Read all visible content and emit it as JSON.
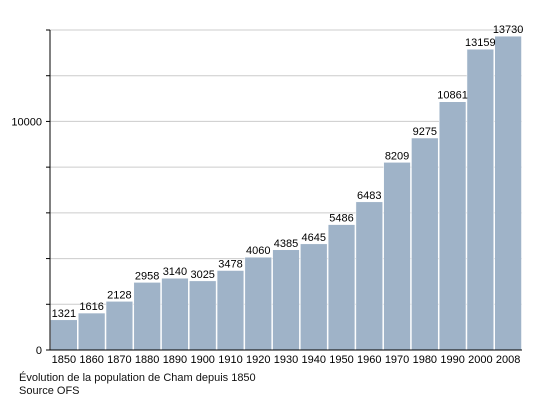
{
  "chart_data": {
    "type": "bar",
    "categories": [
      "1850",
      "1860",
      "1870",
      "1880",
      "1890",
      "1900",
      "1910",
      "1920",
      "1930",
      "1940",
      "1950",
      "1960",
      "1970",
      "1980",
      "1990",
      "2000",
      "2008"
    ],
    "values": [
      1321,
      1616,
      2128,
      2958,
      3140,
      3025,
      3478,
      4060,
      4385,
      4645,
      5486,
      6483,
      8209,
      9275,
      10861,
      13159,
      13730
    ],
    "value_labels": [
      "1321",
      "1616",
      "2128",
      "2958",
      "3140",
      "3025",
      "3478",
      "4060",
      "4385",
      "4645",
      "5486",
      "6483",
      "8209",
      "9275",
      "10861",
      "13159",
      "13730"
    ],
    "y_tick_labels": [
      "0",
      "10000"
    ],
    "y_tick_values": [
      0,
      10000
    ],
    "y_minor_ticks": [
      2000,
      4000,
      6000,
      8000,
      12000,
      14000
    ],
    "ylim": [
      0,
      14000
    ],
    "grid": true,
    "title": "",
    "xlabel": "",
    "ylabel": "",
    "colors": {
      "bar": "#9fb3c8",
      "bar_edge": "#ffffff",
      "grid": "#cccccc",
      "axis": "#000000",
      "text": "#000000"
    }
  },
  "caption": {
    "line1": "Évolution de la population de Cham depuis 1850",
    "line2": "Source OFS"
  }
}
